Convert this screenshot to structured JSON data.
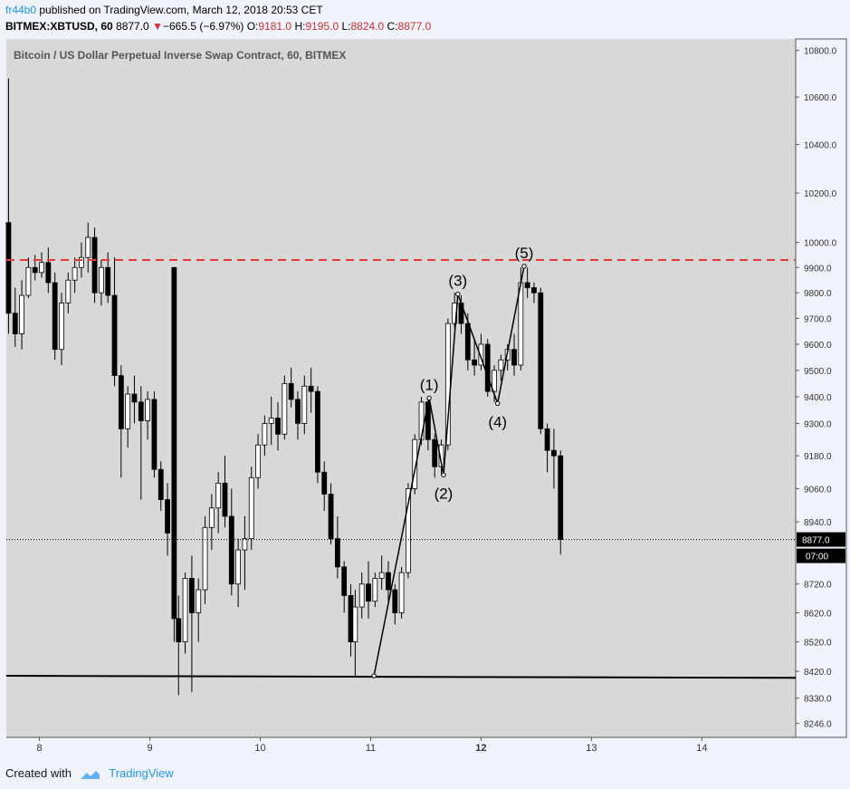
{
  "header": {
    "author": "fr44b0",
    "published_text": "published on TradingView.com, March 12, 2018 20:53 CET",
    "symbol": "BITMEX:XBTUSD, 60",
    "last": "8877.0",
    "change": "−665.5 (−6.97%)",
    "o_label": "O:",
    "o_value": "9181.0",
    "h_label": "H:",
    "h_value": "9195.0",
    "l_label": "L:",
    "l_value": "8824.0",
    "c_label": "C:",
    "c_value": "8877.0"
  },
  "footer": {
    "created_with": "Created with",
    "brand": "TradingView"
  },
  "colors": {
    "background": "#d8d8d8",
    "page": "#f0f3fa",
    "resistance": "#e53935",
    "accent": "#2196f3",
    "down": "#d32f2f"
  },
  "chart_data": {
    "type": "candlestick",
    "title": "Bitcoin / US Dollar Perpetual Inverse Swap Contract, 60, BITMEX",
    "x_tick_labels": [
      "8",
      "9",
      "10",
      "11",
      "12",
      "13",
      "14"
    ],
    "x_tick_values": [
      8,
      9,
      10,
      11,
      12,
      13,
      14
    ],
    "x_range": [
      7.7,
      14.85
    ],
    "y_tick_labels": [
      "10800.0",
      "10600.0",
      "10400.0",
      "10200.0",
      "10000.0",
      "9900.0",
      "9800.0",
      "9700.0",
      "9600.0",
      "9500.0",
      "9400.0",
      "9300.0",
      "9180.0",
      "9060.0",
      "8940.0",
      "8720.0",
      "8620.0",
      "8520.0",
      "8420.0",
      "8330.0",
      "8246.0"
    ],
    "y_scale": "log",
    "y_range": [
      8200,
      10850
    ],
    "grid": false,
    "current_price": {
      "value": 8877.0,
      "label": "8877.0",
      "countdown": "07:00"
    },
    "resistance_line": 9930,
    "support_line": [
      [
        7.7,
        8405
      ],
      [
        14.85,
        8398
      ]
    ],
    "elliott_wave": {
      "points": [
        [
          11.03,
          8405
        ],
        [
          11.53,
          9395
        ],
        [
          11.66,
          9110
        ],
        [
          11.79,
          9795
        ],
        [
          12.15,
          9375
        ],
        [
          12.39,
          9905
        ]
      ],
      "labels": [
        "(1)",
        "(2)",
        "(3)",
        "(4)",
        "(5)"
      ]
    },
    "candles": [
      [
        7.72,
        10080,
        10680,
        9640,
        9720
      ],
      [
        7.78,
        9720,
        9820,
        9590,
        9640
      ],
      [
        7.84,
        9640,
        9850,
        9580,
        9790
      ],
      [
        7.9,
        9790,
        9940,
        9780,
        9900
      ],
      [
        7.96,
        9900,
        9950,
        9850,
        9880
      ],
      [
        8.02,
        9880,
        9960,
        9860,
        9920
      ],
      [
        8.08,
        9920,
        9980,
        9800,
        9840
      ],
      [
        8.14,
        9840,
        9880,
        9540,
        9580
      ],
      [
        8.2,
        9580,
        9800,
        9520,
        9760
      ],
      [
        8.26,
        9760,
        9880,
        9720,
        9850
      ],
      [
        8.32,
        9850,
        9940,
        9800,
        9900
      ],
      [
        8.38,
        9900,
        10000,
        9860,
        9940
      ],
      [
        8.44,
        9940,
        10080,
        9880,
        10020
      ],
      [
        8.5,
        10020,
        10060,
        9760,
        9800
      ],
      [
        8.56,
        9800,
        9930,
        9750,
        9900
      ],
      [
        8.62,
        9900,
        9960,
        9760,
        9790
      ],
      [
        8.68,
        9790,
        9940,
        9440,
        9480
      ],
      [
        8.74,
        9480,
        9520,
        9100,
        9280
      ],
      [
        8.8,
        9280,
        9440,
        9210,
        9410
      ],
      [
        8.86,
        9410,
        9480,
        9300,
        9380
      ],
      [
        8.92,
        9380,
        9440,
        9020,
        9310
      ],
      [
        8.98,
        9310,
        9420,
        9240,
        9390
      ],
      [
        9.04,
        9390,
        9420,
        9100,
        9130
      ],
      [
        9.1,
        9130,
        9160,
        8980,
        9020
      ],
      [
        9.16,
        9020,
        9080,
        8820,
        8900
      ],
      [
        9.22,
        9900,
        9900,
        8520,
        8600
      ],
      [
        9.26,
        8600,
        8680,
        8340,
        8520
      ],
      [
        9.32,
        8520,
        8760,
        8480,
        8740
      ],
      [
        9.38,
        8740,
        8820,
        8350,
        8620
      ],
      [
        9.44,
        8620,
        8740,
        8520,
        8700
      ],
      [
        9.5,
        8700,
        8960,
        8650,
        8920
      ],
      [
        9.56,
        8920,
        9040,
        8840,
        8990
      ],
      [
        9.62,
        8990,
        9120,
        8900,
        9080
      ],
      [
        9.68,
        9080,
        9180,
        8920,
        8960
      ],
      [
        9.74,
        8960,
        9060,
        8680,
        8720
      ],
      [
        9.8,
        8720,
        8880,
        8640,
        8840
      ],
      [
        9.86,
        8840,
        8960,
        8700,
        8880
      ],
      [
        9.92,
        8880,
        9140,
        8840,
        9100
      ],
      [
        9.98,
        9100,
        9260,
        9060,
        9220
      ],
      [
        10.04,
        9220,
        9330,
        9180,
        9300
      ],
      [
        10.1,
        9300,
        9400,
        9220,
        9320
      ],
      [
        10.16,
        9320,
        9380,
        9200,
        9260
      ],
      [
        10.22,
        9260,
        9480,
        9240,
        9450
      ],
      [
        10.28,
        9450,
        9510,
        9360,
        9390
      ],
      [
        10.34,
        9390,
        9420,
        9240,
        9300
      ],
      [
        10.4,
        9300,
        9480,
        9260,
        9440
      ],
      [
        10.46,
        9440,
        9510,
        9340,
        9420
      ],
      [
        10.52,
        9420,
        9440,
        9080,
        9120
      ],
      [
        10.58,
        9120,
        9160,
        8980,
        9040
      ],
      [
        10.64,
        9040,
        9080,
        8860,
        8880
      ],
      [
        10.7,
        8880,
        8960,
        8740,
        8780
      ],
      [
        10.76,
        8780,
        8800,
        8620,
        8680
      ],
      [
        10.82,
        8680,
        8720,
        8470,
        8520
      ],
      [
        10.86,
        8520,
        8700,
        8405,
        8640
      ],
      [
        10.92,
        8640,
        8760,
        8600,
        8720
      ],
      [
        10.98,
        8720,
        8800,
        8600,
        8660
      ],
      [
        11.04,
        8660,
        8760,
        8640,
        8740
      ],
      [
        11.1,
        8740,
        8820,
        8700,
        8760
      ],
      [
        11.16,
        8760,
        8800,
        8660,
        8700
      ],
      [
        11.22,
        8700,
        8720,
        8580,
        8620
      ],
      [
        11.28,
        8620,
        8780,
        8600,
        8760
      ],
      [
        11.34,
        8760,
        9080,
        8740,
        9060
      ],
      [
        11.4,
        9060,
        9260,
        9040,
        9240
      ],
      [
        11.46,
        9240,
        9400,
        9220,
        9380
      ],
      [
        11.52,
        9380,
        9400,
        9200,
        9240
      ],
      [
        11.58,
        9240,
        9260,
        9100,
        9140
      ],
      [
        11.64,
        9140,
        9240,
        9110,
        9220
      ],
      [
        11.7,
        9220,
        9700,
        9200,
        9680
      ],
      [
        11.76,
        9680,
        9800,
        9660,
        9760
      ],
      [
        11.82,
        9760,
        9790,
        9640,
        9680
      ],
      [
        11.88,
        9680,
        9720,
        9500,
        9540
      ],
      [
        11.94,
        9540,
        9620,
        9480,
        9520
      ],
      [
        12.0,
        9520,
        9640,
        9500,
        9600
      ],
      [
        12.06,
        9600,
        9620,
        9400,
        9420
      ],
      [
        12.12,
        9420,
        9520,
        9380,
        9500
      ],
      [
        12.18,
        9500,
        9560,
        9460,
        9540
      ],
      [
        12.24,
        9540,
        9600,
        9500,
        9580
      ],
      [
        12.3,
        9580,
        9640,
        9480,
        9520
      ],
      [
        12.36,
        9520,
        9900,
        9500,
        9840
      ],
      [
        12.42,
        9840,
        9900,
        9780,
        9820
      ],
      [
        12.48,
        9820,
        9840,
        9760,
        9800
      ],
      [
        12.54,
        9800,
        9820,
        9260,
        9280
      ],
      [
        12.6,
        9280,
        9300,
        9120,
        9200
      ],
      [
        12.66,
        9200,
        9280,
        9060,
        9180
      ],
      [
        12.72,
        9180,
        9200,
        8824,
        8877
      ]
    ]
  }
}
